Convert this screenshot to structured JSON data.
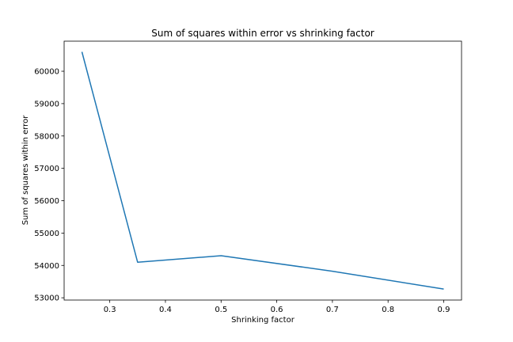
{
  "chart_data": {
    "type": "line",
    "title": "Sum of squares within error vs shrinking factor",
    "xlabel": "Shrinking factor",
    "ylabel": "Sum of squares within error",
    "xlim": [
      0.218,
      0.932
    ],
    "ylim": [
      52930,
      60930
    ],
    "xticks": [
      0.3,
      0.4,
      0.5,
      0.6,
      0.7,
      0.8,
      0.9
    ],
    "yticks": [
      53000,
      54000,
      55000,
      56000,
      57000,
      58000,
      59000,
      60000
    ],
    "grid": false,
    "series": [
      {
        "color": "#1f77b4",
        "x": [
          0.25,
          0.35,
          0.5,
          0.7,
          0.9
        ],
        "y": [
          60600,
          54100,
          54300,
          53820,
          53270
        ]
      }
    ]
  }
}
